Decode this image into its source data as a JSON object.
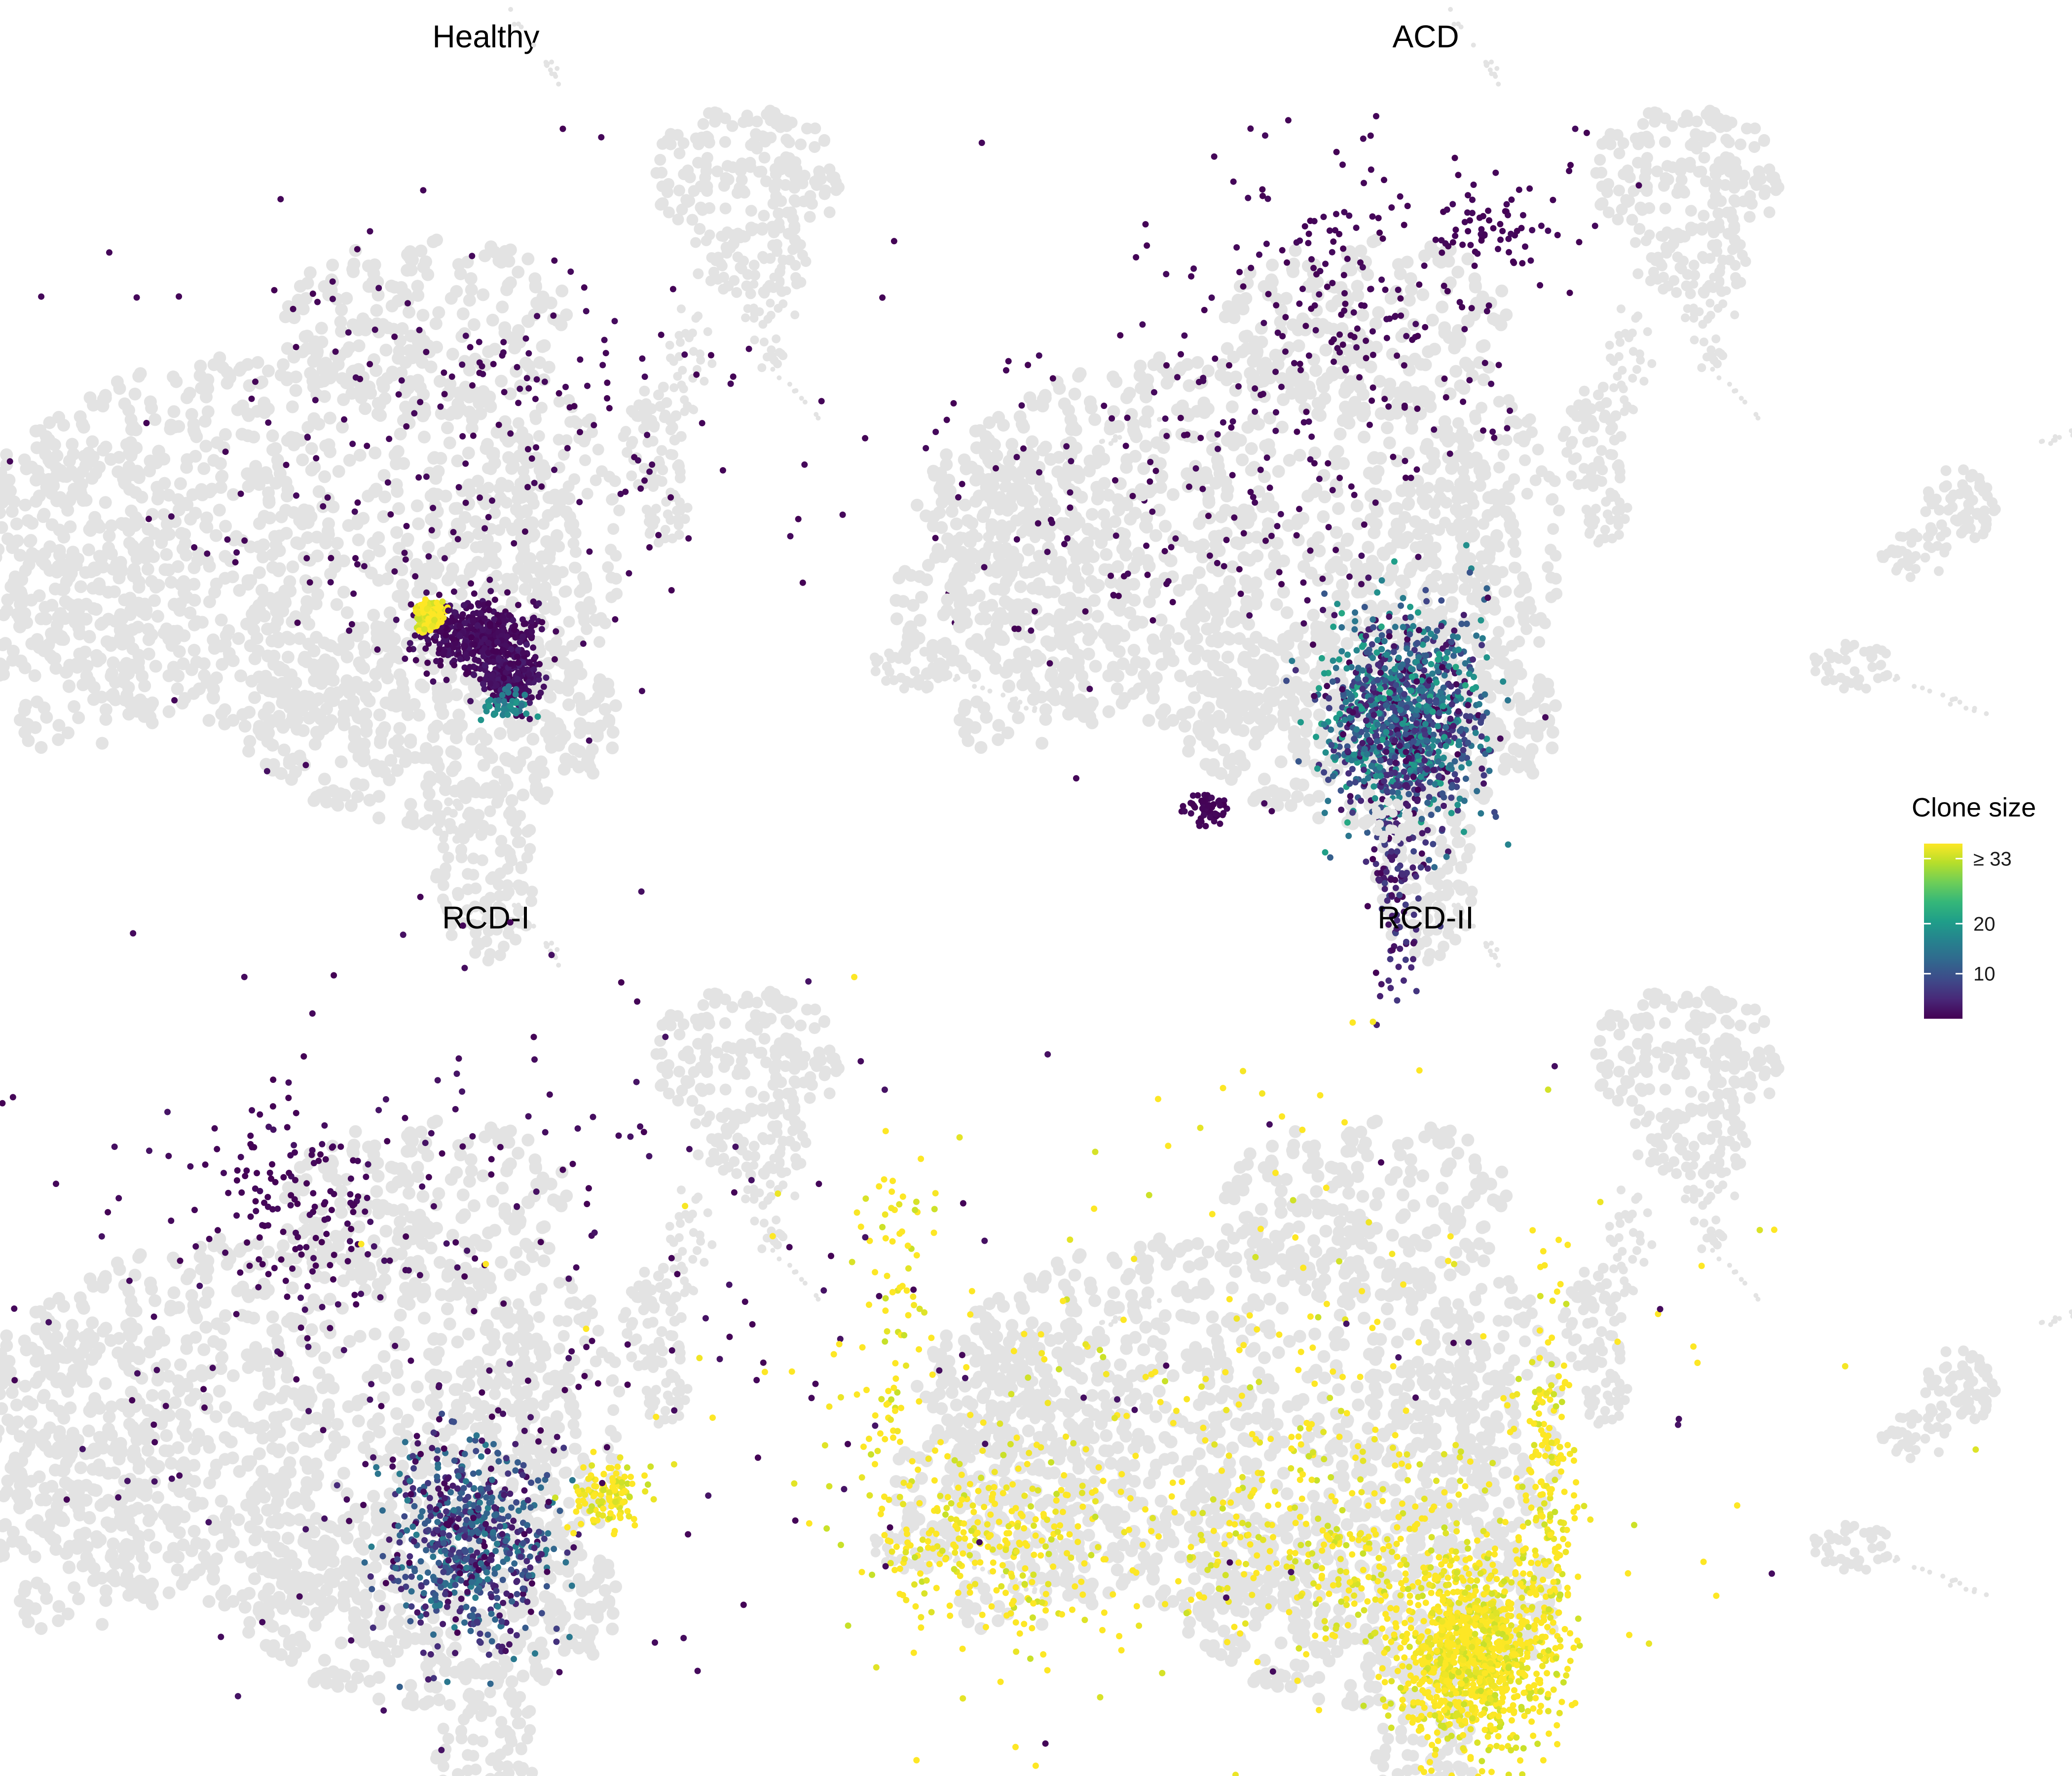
{
  "chart_data": {
    "type": "scatter",
    "kind": "UMAP facets colored by clone size (background cells in light grey)",
    "panels": [
      {
        "title": "Healthy",
        "dominant_color": "#440154",
        "clusters": [
          {
            "cx": 0.12,
            "cy": -0.25,
            "sx": 0.25,
            "sy": 0.15,
            "n": 460,
            "value_range": [
              1,
              3
            ]
          },
          {
            "cx": 0.42,
            "cy": -0.6,
            "sx": 0.12,
            "sy": 0.12,
            "n": 220,
            "value_range": [
              1,
              4
            ]
          },
          {
            "cx": -0.3,
            "cy": -0.05,
            "sx": 0.06,
            "sy": 0.07,
            "n": 130,
            "value_range": [
              33,
              40
            ]
          },
          {
            "cx": 0.4,
            "cy": -0.85,
            "sx": 0.1,
            "sy": 0.06,
            "n": 45,
            "value_range": [
              14,
              20
            ]
          },
          {
            "cx": 0.15,
            "cy": 1.5,
            "sx": 1.6,
            "sy": 1.0,
            "n": 220,
            "value_range": [
              1,
              2
            ]
          }
        ]
      },
      {
        "title": "ACD",
        "dominant_color": "#440154",
        "clusters": [
          {
            "cx": 0.0,
            "cy": -0.95,
            "sx": 0.35,
            "sy": 0.45,
            "n": 1100,
            "value_range": [
              1,
              22
            ]
          },
          {
            "cx": -0.05,
            "cy": -2.25,
            "sx": 0.12,
            "sy": 0.55,
            "n": 130,
            "value_range": [
              1,
              8
            ]
          },
          {
            "cx": -1.75,
            "cy": -1.75,
            "sx": 0.1,
            "sy": 0.08,
            "n": 60,
            "value_range": [
              1,
              2
            ]
          },
          {
            "cx": -0.5,
            "cy": 2.7,
            "sx": 0.9,
            "sy": 0.8,
            "n": 200,
            "value_range": [
              1,
              2
            ]
          },
          {
            "cx": 0.8,
            "cy": 3.4,
            "sx": 0.35,
            "sy": 0.25,
            "n": 60,
            "value_range": [
              1,
              2
            ]
          },
          {
            "cx": -2.0,
            "cy": 1.0,
            "sx": 1.0,
            "sy": 0.9,
            "n": 140,
            "value_range": [
              1,
              2
            ]
          }
        ]
      },
      {
        "title": "RCD-I",
        "dominant_color": "#440154",
        "clusters": [
          {
            "cx": 0.05,
            "cy": -0.5,
            "sx": 0.35,
            "sy": 0.45,
            "n": 650,
            "value_range": [
              1,
              16
            ]
          },
          {
            "cx": 1.25,
            "cy": -0.05,
            "sx": 0.16,
            "sy": 0.14,
            "n": 120,
            "value_range": [
              33,
              40
            ]
          },
          {
            "cx": -0.15,
            "cy": 1.8,
            "sx": 1.8,
            "sy": 1.5,
            "n": 260,
            "value_range": [
              1,
              3
            ]
          },
          {
            "cx": -1.5,
            "cy": 2.5,
            "sx": 0.4,
            "sy": 0.4,
            "n": 110,
            "value_range": [
              1,
              2
            ]
          }
        ]
      },
      {
        "title": "RCD-II",
        "dominant_color": "#fde725",
        "clusters": [
          {
            "cx": 0.6,
            "cy": -1.45,
            "sx": 0.32,
            "sy": 0.42,
            "n": 950,
            "value_range": [
              33,
              40
            ]
          },
          {
            "cx": 1.28,
            "cy": -0.25,
            "sx": 0.12,
            "sy": 0.9,
            "n": 220,
            "value_range": [
              33,
              40
            ]
          },
          {
            "cx": -0.5,
            "cy": -0.5,
            "sx": 0.8,
            "sy": 0.5,
            "n": 300,
            "value_range": [
              33,
              40
            ]
          },
          {
            "cx": -3.6,
            "cy": -0.4,
            "sx": 0.5,
            "sy": 0.4,
            "n": 260,
            "value_range": [
              33,
              40
            ]
          },
          {
            "cx": -4.5,
            "cy": 1.2,
            "sx": 0.15,
            "sy": 0.8,
            "n": 80,
            "value_range": [
              33,
              40
            ]
          },
          {
            "cx": -1.5,
            "cy": 0.8,
            "sx": 2.2,
            "sy": 1.4,
            "n": 260,
            "value_range": [
              33,
              40
            ]
          },
          {
            "cx": -1.5,
            "cy": 0.6,
            "sx": 2.0,
            "sy": 1.3,
            "n": 35,
            "value_range": [
              1,
              3
            ]
          }
        ]
      }
    ],
    "legend": {
      "title": "Clone size",
      "placement": "right",
      "colormap": "viridis",
      "colors": [
        "#440154",
        "#482878",
        "#3e4a89",
        "#31688e",
        "#26828e",
        "#1f9e89",
        "#35b779",
        "#6ece58",
        "#b5de2b",
        "#fde725"
      ],
      "range": [
        1,
        36
      ],
      "ticks": [
        {
          "value": 10,
          "label": "10"
        },
        {
          "value": 20,
          "label": "20"
        },
        {
          "value": 33,
          "label": "≥ 33"
        }
      ]
    },
    "background_color": "#e3e3e3",
    "grid": false,
    "axes": false
  }
}
